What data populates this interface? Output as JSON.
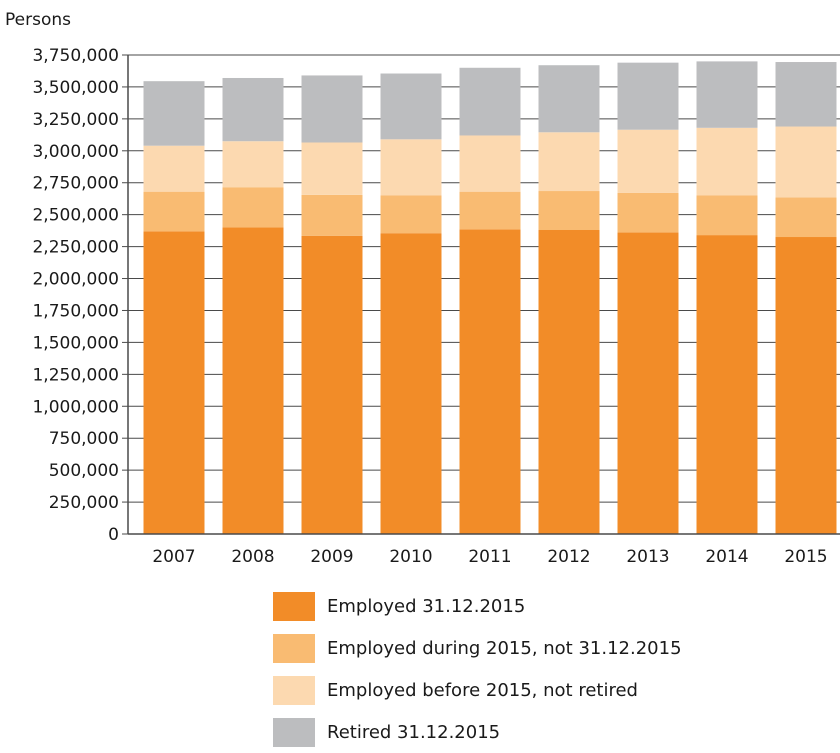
{
  "chart_data": {
    "type": "bar",
    "stacked": true,
    "ylabel": "Persons",
    "xlabel": "",
    "ylim": [
      0,
      3750000
    ],
    "yticks": [
      0,
      250000,
      500000,
      750000,
      1000000,
      1250000,
      1500000,
      1750000,
      2000000,
      2250000,
      2500000,
      2750000,
      3000000,
      3250000,
      3500000,
      3750000
    ],
    "ytick_labels": [
      "0",
      "250,000",
      "500,000",
      "750,000",
      "1,000,000",
      "1,250,000",
      "1,500,000",
      "1,750,000",
      "2,000,000",
      "2,250,000",
      "2,500,000",
      "2,750,000",
      "3,000,000",
      "3,250,000",
      "3,500,000",
      "3,750,000"
    ],
    "grid": true,
    "legend_position": "bottom",
    "categories": [
      "2007",
      "2008",
      "2009",
      "2010",
      "2011",
      "2012",
      "2013",
      "2014",
      "2015"
    ],
    "series": [
      {
        "name": "Employed 31.12.2015",
        "color": "#f28c28",
        "values": [
          2370000,
          2400000,
          2335000,
          2355000,
          2385000,
          2380000,
          2360000,
          2340000,
          2325000
        ]
      },
      {
        "name": "Employed during 2015, not 31.12.2015",
        "color": "#f9bb72",
        "values": [
          310000,
          315000,
          320000,
          295000,
          295000,
          305000,
          310000,
          310000,
          310000
        ]
      },
      {
        "name": "Employed before 2015, not retired",
        "color": "#fcd9b0",
        "values": [
          360000,
          360000,
          410000,
          440000,
          440000,
          460000,
          495000,
          530000,
          555000
        ]
      },
      {
        "name": "Retired 31.12.2015",
        "color": "#bcbdbf",
        "values": [
          505000,
          495000,
          525000,
          515000,
          530000,
          525000,
          525000,
          520000,
          505000
        ]
      }
    ]
  }
}
